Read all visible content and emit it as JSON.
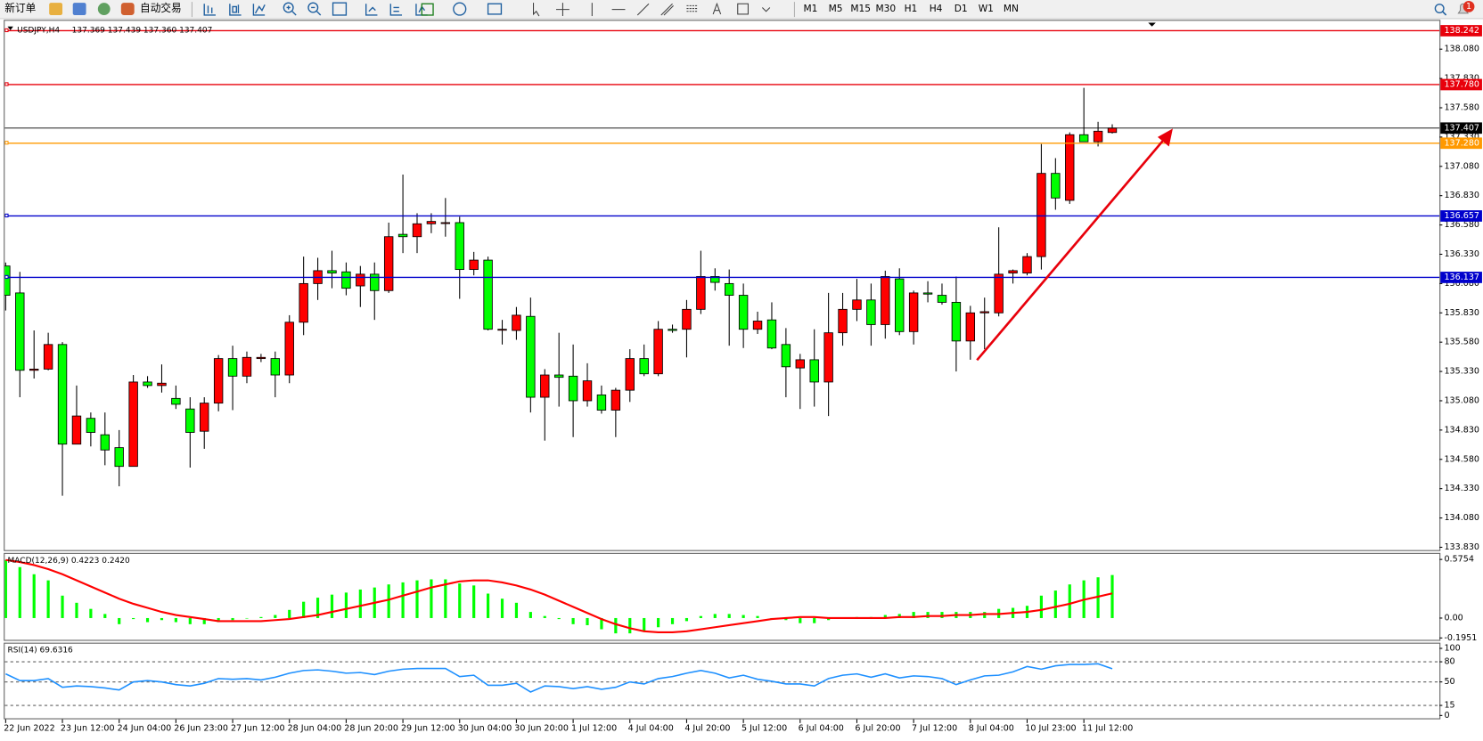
{
  "toolbar": {
    "buttons": [
      "新订单",
      "自动交易"
    ],
    "timeframes": [
      "M1",
      "M5",
      "M15",
      "M30",
      "H1",
      "H4",
      "D1",
      "W1",
      "MN"
    ],
    "notifications": 1
  },
  "chart_data": [
    {
      "type": "candlestick",
      "title": "USDJPY,H4",
      "ohlc_readout": "137.369 137.439 137.360 137.407",
      "up_color": "#ff0000",
      "down_color": "#00ff00",
      "ylim": [
        133.806,
        138.322
      ],
      "yticks": [
        {
          "value": 133.83,
          "label": "133.830"
        },
        {
          "value": 134.08,
          "label": "134.080"
        },
        {
          "value": 134.33,
          "label": "134.330"
        },
        {
          "value": 134.58,
          "label": "134.580"
        },
        {
          "value": 134.83,
          "label": "134.830"
        },
        {
          "value": 135.08,
          "label": "135.080"
        },
        {
          "value": 135.33,
          "label": "135.330"
        },
        {
          "value": 135.58,
          "label": "135.580"
        },
        {
          "value": 135.83,
          "label": "135.830"
        },
        {
          "value": 136.08,
          "label": "136.080"
        },
        {
          "value": 136.33,
          "label": "136.330"
        },
        {
          "value": 136.58,
          "label": "136.580"
        },
        {
          "value": 136.83,
          "label": "136.830"
        },
        {
          "value": 137.08,
          "label": "137.080"
        },
        {
          "value": 137.33,
          "label": "137.330"
        },
        {
          "value": 137.58,
          "label": "137.580"
        },
        {
          "value": 137.83,
          "label": "137.830"
        },
        {
          "value": 138.08,
          "label": "138.080"
        }
      ],
      "grid": false,
      "levels": {
        "values": [
          138.242,
          137.78,
          137.407,
          137.28,
          136.657,
          136.137
        ],
        "value_labels": [
          "138.242",
          "137.780",
          "137.407",
          "137.280",
          "136.657",
          "136.137"
        ],
        "colors": [
          "#e8000b",
          "#e8000b",
          "#000000",
          "#ff9900",
          "#0000cc",
          "#0000cc"
        ]
      },
      "categories": [
        "22 Jun 2022",
        null,
        null,
        null,
        "23 Jun 12:00",
        null,
        null,
        null,
        "24 Jun 04:00",
        null,
        null,
        null,
        "26 Jun 23:00",
        null,
        null,
        null,
        "27 Jun 12:00",
        null,
        null,
        null,
        "28 Jun 04:00",
        null,
        null,
        null,
        "28 Jun 20:00",
        null,
        null,
        null,
        "29 Jun 12:00",
        null,
        null,
        null,
        "30 Jun 04:00",
        null,
        null,
        null,
        "30 Jun 20:00",
        null,
        null,
        null,
        "1 Jul 12:00",
        null,
        null,
        null,
        "4 Jul 04:00",
        null,
        null,
        null,
        "4 Jul 20:00",
        null,
        null,
        null,
        "5 Jul 12:00",
        null,
        null,
        null,
        "6 Jul 04:00",
        null,
        null,
        null,
        "6 Jul 20:00",
        null,
        null,
        null,
        "7 Jul 12:00",
        null,
        null,
        null,
        "8 Jul 04:00",
        null,
        null,
        null,
        "10 Jul 23:00",
        null,
        null,
        null,
        "11 Jul 12:00",
        null,
        null
      ],
      "open": [
        136.23,
        136.0,
        135.34,
        135.35,
        135.56,
        134.71,
        134.93,
        134.79,
        134.68,
        134.52,
        135.24,
        135.21,
        135.1,
        135.01,
        134.82,
        135.06,
        135.44,
        135.29,
        135.44,
        135.44,
        135.3,
        135.75,
        136.08,
        136.19,
        136.18,
        136.06,
        136.16,
        136.02,
        136.5,
        136.48,
        136.59,
        136.6,
        136.6,
        136.2,
        136.28,
        135.69,
        135.68,
        135.8,
        135.11,
        135.3,
        135.29,
        135.08,
        135.13,
        135.0,
        135.17,
        135.44,
        135.31,
        135.69,
        135.69,
        135.86,
        136.14,
        136.08,
        135.98,
        135.69,
        135.77,
        135.56,
        135.36,
        135.43,
        135.24,
        135.66,
        135.86,
        135.94,
        135.73,
        136.12,
        135.67,
        136.0,
        135.98,
        135.92,
        135.59,
        135.83,
        135.83,
        136.17,
        136.17,
        136.31,
        137.02,
        136.79,
        137.35,
        137.29,
        137.369
      ],
      "high": [
        136.26,
        136.18,
        135.68,
        135.66,
        135.58,
        135.21,
        134.98,
        134.98,
        134.83,
        135.3,
        135.29,
        135.39,
        135.21,
        135.11,
        135.11,
        135.47,
        135.55,
        135.5,
        135.48,
        135.5,
        135.81,
        136.31,
        136.3,
        136.36,
        136.26,
        136.23,
        136.26,
        136.6,
        137.01,
        136.68,
        136.68,
        136.81,
        136.65,
        136.35,
        136.31,
        135.77,
        135.88,
        135.96,
        135.35,
        135.66,
        135.56,
        135.4,
        135.21,
        135.19,
        135.52,
        135.56,
        135.76,
        135.73,
        135.94,
        136.36,
        136.21,
        136.2,
        136.08,
        135.84,
        135.92,
        135.7,
        135.48,
        135.69,
        136.0,
        136.0,
        136.12,
        136.08,
        136.19,
        136.21,
        136.02,
        136.1,
        136.08,
        136.14,
        135.89,
        135.96,
        136.56,
        136.2,
        136.34,
        137.27,
        137.15,
        137.37,
        137.75,
        137.46,
        137.439
      ],
      "low": [
        135.85,
        135.11,
        135.27,
        135.34,
        134.27,
        134.71,
        134.69,
        134.53,
        134.35,
        134.52,
        135.19,
        135.15,
        135.01,
        134.51,
        134.67,
        134.99,
        135.0,
        135.23,
        135.41,
        135.11,
        135.23,
        135.64,
        135.94,
        136.04,
        135.98,
        135.88,
        135.77,
        136.0,
        136.34,
        136.34,
        136.51,
        136.48,
        135.95,
        136.15,
        135.68,
        135.56,
        135.6,
        134.98,
        134.74,
        135.03,
        134.77,
        135.03,
        134.97,
        134.77,
        135.07,
        135.29,
        135.29,
        135.66,
        135.45,
        135.82,
        136.02,
        135.55,
        135.53,
        135.65,
        135.52,
        135.11,
        135.01,
        135.03,
        134.95,
        135.55,
        135.76,
        135.55,
        135.61,
        135.64,
        135.56,
        135.92,
        135.9,
        135.33,
        135.43,
        135.52,
        135.8,
        136.08,
        136.15,
        136.2,
        136.71,
        136.76,
        137.29,
        137.25,
        137.36
      ],
      "close": [
        135.98,
        135.34,
        135.35,
        135.56,
        134.71,
        134.95,
        134.81,
        134.66,
        134.52,
        135.24,
        135.21,
        135.23,
        135.05,
        134.81,
        135.06,
        135.44,
        135.29,
        135.45,
        135.45,
        135.3,
        135.75,
        136.08,
        136.19,
        136.17,
        136.04,
        136.16,
        136.02,
        136.48,
        136.48,
        136.59,
        136.61,
        136.6,
        136.2,
        136.28,
        135.69,
        135.69,
        135.81,
        135.11,
        135.3,
        135.28,
        135.08,
        135.25,
        135.0,
        135.17,
        135.44,
        135.31,
        135.69,
        135.68,
        135.86,
        136.14,
        136.09,
        135.98,
        135.69,
        135.76,
        135.53,
        135.37,
        135.43,
        135.24,
        135.66,
        135.86,
        135.94,
        135.73,
        136.14,
        135.67,
        136.0,
        135.99,
        135.92,
        135.59,
        135.83,
        135.84,
        136.16,
        136.19,
        136.31,
        137.02,
        136.81,
        137.35,
        137.29,
        137.38,
        137.407
      ]
    },
    {
      "type": "macd",
      "title": "MACD(12,26,9) 0.4223 0.2420",
      "ylim": [
        -0.214,
        0.63
      ],
      "yticks": [
        -0.1951,
        {
          "value": 0,
          "label": "0.00"
        },
        0.5754
      ],
      "series": [
        {
          "kind": "histogram",
          "color": "#00ff00",
          "values": [
            0.57,
            0.5,
            0.43,
            0.37,
            0.22,
            0.15,
            0.09,
            0.04,
            -0.06,
            -0.01,
            -0.04,
            -0.02,
            -0.04,
            -0.06,
            -0.06,
            -0.04,
            -0.02,
            0.0,
            0.01,
            0.03,
            0.08,
            0.16,
            0.2,
            0.23,
            0.25,
            0.28,
            0.3,
            0.33,
            0.35,
            0.37,
            0.38,
            0.38,
            0.34,
            0.32,
            0.24,
            0.19,
            0.15,
            0.06,
            0.02,
            -0.01,
            -0.06,
            -0.07,
            -0.11,
            -0.15,
            -0.15,
            -0.13,
            -0.09,
            -0.06,
            -0.03,
            0.02,
            0.04,
            0.04,
            0.03,
            0.02,
            0.0,
            -0.02,
            -0.05,
            -0.05,
            -0.02,
            0.0,
            0.01,
            0.01,
            0.03,
            0.04,
            0.06,
            0.06,
            0.06,
            0.06,
            0.06,
            0.06,
            0.09,
            0.1,
            0.12,
            0.22,
            0.27,
            0.33,
            0.37,
            0.4,
            0.4223
          ]
        },
        {
          "kind": "line",
          "color": "#ff0000",
          "values": [
            0.57,
            0.55,
            0.52,
            0.48,
            0.43,
            0.37,
            0.31,
            0.25,
            0.19,
            0.14,
            0.1,
            0.06,
            0.03,
            0.01,
            -0.01,
            -0.03,
            -0.03,
            -0.03,
            -0.03,
            -0.02,
            -0.01,
            0.01,
            0.03,
            0.06,
            0.09,
            0.12,
            0.15,
            0.18,
            0.22,
            0.26,
            0.3,
            0.33,
            0.36,
            0.37,
            0.37,
            0.35,
            0.32,
            0.28,
            0.23,
            0.17,
            0.11,
            0.05,
            -0.01,
            -0.06,
            -0.1,
            -0.13,
            -0.14,
            -0.14,
            -0.13,
            -0.11,
            -0.09,
            -0.07,
            -0.05,
            -0.03,
            -0.01,
            0.0,
            0.01,
            0.01,
            0.0,
            0.0,
            0.0,
            0.0,
            0.0,
            0.01,
            0.01,
            0.02,
            0.02,
            0.03,
            0.03,
            0.04,
            0.04,
            0.05,
            0.06,
            0.08,
            0.11,
            0.14,
            0.18,
            0.21,
            0.242
          ]
        }
      ]
    },
    {
      "type": "line",
      "title": "RSI(14) 69.6316",
      "ylim": [
        0,
        100
      ],
      "yticks": [
        0,
        15,
        50,
        80,
        100
      ],
      "dashed_levels": [
        15,
        50,
        80
      ],
      "series": [
        {
          "color": "#1e90ff",
          "values": [
            62,
            52,
            52,
            55,
            42,
            44,
            43,
            41,
            38,
            50,
            52,
            50,
            46,
            44,
            48,
            55,
            54,
            55,
            53,
            57,
            63,
            67,
            68,
            66,
            63,
            64,
            61,
            66,
            69,
            70,
            70,
            70,
            58,
            60,
            45,
            45,
            48,
            35,
            44,
            43,
            40,
            43,
            39,
            42,
            50,
            47,
            55,
            58,
            63,
            67,
            63,
            56,
            60,
            54,
            51,
            47,
            47,
            44,
            55,
            60,
            62,
            57,
            62,
            56,
            59,
            58,
            55,
            46,
            53,
            59,
            60,
            65,
            73,
            69,
            74,
            76,
            76,
            77,
            69.6316
          ]
        }
      ]
    }
  ]
}
